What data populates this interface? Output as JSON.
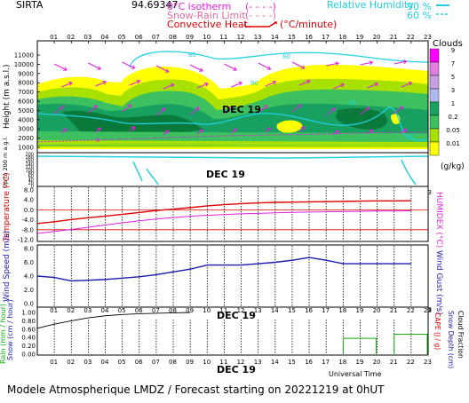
{
  "header": {
    "site": "SIRTA",
    "coords": "94.69347",
    "legend_isotherm": "0°C isotherm",
    "legend_snow_rain": "Snow-Rain Limit",
    "legend_convective": "Convective Heat.",
    "legend_convective_unit": "(°C/minute)",
    "legend_rh": "Relative Humidity",
    "rh_90": "90 %",
    "rh_60": "60 %"
  },
  "footer": {
    "model": "Modele Atmospherique LMDZ / Forecast starting on 20221219 at 0hUT",
    "universal_time": "Universal Time"
  },
  "colors": {
    "magenta": "#e020e0",
    "cyan": "#20d0e0",
    "red": "#dd0000",
    "navy": "#1a1ab0",
    "green": "#10b010",
    "black": "#000000"
  },
  "chart_data": [
    {
      "type": "heatmap",
      "title": "Clouds",
      "date_label": "DEC 19",
      "x_ticks": [
        "01",
        "02",
        "03",
        "04",
        "05",
        "06",
        "07",
        "08",
        "09",
        "10",
        "11",
        "12",
        "13",
        "14",
        "15",
        "16",
        "17",
        "18",
        "19",
        "20",
        "21",
        "22",
        "23"
      ],
      "y_ticks_upper": [
        "11000",
        "10000",
        "9000",
        "8000",
        "7000",
        "6000",
        "5000",
        "4000",
        "3000",
        "2000",
        "1000"
      ],
      "y_ticks_lower": [
        "200",
        "180",
        "160",
        "140",
        "120",
        "100",
        "80",
        "60",
        "40",
        "20",
        "0"
      ],
      "ylabel_upper": "Height (m a.s.l.)",
      "ylabel_lower": "Up to 200 m a.g.l.",
      "colorbar_title": "Clouds",
      "colorbar_unit": "(g/kg)",
      "colorbar_levels": [
        "9",
        "7",
        "5",
        "3",
        "1",
        "0.2",
        "0.05",
        "0.01"
      ],
      "colorbar_colors": [
        "#ff00ff",
        "#e07fe0",
        "#c89fe0",
        "#b0b8f0",
        "#18a060",
        "#3cc060",
        "#a8e000",
        "#ffff00"
      ],
      "rh_contour_labels": [
        "80",
        "80",
        "90",
        "90",
        "60"
      ]
    },
    {
      "type": "line",
      "date_label": "DEC 19",
      "x_ticks": [
        "01",
        "02",
        "03",
        "04",
        "05",
        "06",
        "07",
        "08",
        "09",
        "10",
        "11",
        "12",
        "13",
        "14",
        "15",
        "16",
        "17",
        "18",
        "19",
        "20",
        "21",
        "22",
        "23"
      ],
      "ylabel_left": "Temperature (°C)",
      "ylabel_right": "HUMIDEX (°C)",
      "y_ticks": [
        "8.0",
        "4.0",
        "0.0",
        "-4.0",
        "-8.0",
        "-12.0"
      ],
      "ylim": [
        -12,
        8
      ],
      "x": [
        1,
        2,
        3,
        4,
        5,
        6,
        7,
        8,
        9,
        10,
        11,
        12,
        13,
        14,
        15,
        16,
        17,
        18,
        19,
        20,
        21,
        22,
        23
      ],
      "series": [
        {
          "values": [
            -5.5,
            -4.8,
            -3.9,
            -3.2,
            -2.5,
            -1.8,
            -1.1,
            -0.3,
            0.3,
            0.9,
            1.6,
            2.1,
            2.5,
            2.8,
            3.0,
            3.1,
            3.2,
            3.3,
            3.4,
            3.5,
            3.6,
            3.6,
            3.7
          ]
        },
        {
          "values": [
            -9.5,
            -8.7,
            -7.9,
            -7.0,
            -6.1,
            -5.2,
            -4.4,
            -3.7,
            -3.1,
            -2.6,
            -2.2,
            -1.9,
            -1.6,
            -1.4,
            -1.2,
            -1.0,
            -0.9,
            -0.8,
            -0.7,
            -0.6,
            -0.5,
            -0.5,
            -0.4
          ]
        }
      ]
    },
    {
      "type": "line",
      "ylabel_left": "Wind Speed (m/s)",
      "ylabel_right": "Wind Gust (m/s)",
      "y_ticks": [
        "8.0",
        "6.0",
        "4.0",
        "2.0",
        "0.0"
      ],
      "ylim": [
        0,
        8
      ],
      "x": [
        1,
        2,
        3,
        4,
        5,
        6,
        7,
        8,
        9,
        10,
        11,
        12,
        13,
        14,
        15,
        16,
        17,
        18,
        19,
        20,
        21,
        22,
        23
      ],
      "series": [
        {
          "values": [
            4.0,
            3.8,
            3.3,
            3.4,
            3.5,
            3.7,
            3.9,
            4.2,
            4.6,
            5.0,
            5.6,
            5.6,
            5.6,
            5.8,
            6.0,
            6.3,
            6.7,
            6.3,
            5.8,
            5.8,
            5.8,
            5.8,
            5.8
          ]
        }
      ]
    },
    {
      "type": "bar",
      "date_label": "DEC 19",
      "x_ticks": [
        "01",
        "02",
        "03",
        "04",
        "05",
        "06",
        "07",
        "08",
        "09",
        "10",
        "11",
        "12",
        "13",
        "14",
        "15",
        "16",
        "17",
        "18",
        "19",
        "20",
        "21",
        "22",
        "23"
      ],
      "ylabel_left_rain": "Rain (mm / hour)",
      "ylabel_left_snow": "Snow (cm / hour)",
      "ylabel_right_cape": "CAPE (J / g)",
      "ylabel_right_snowdepth": "Snow Depth (cm)",
      "ylabel_right_cloud": "Cloud Fraction",
      "y_ticks": [
        "1.00",
        "0.80",
        "0.60",
        "0.40",
        "0.20",
        "0.00"
      ],
      "ylim": [
        0,
        1
      ],
      "cloud_fraction": {
        "x": [
          1,
          2,
          3,
          4,
          5,
          6,
          7,
          8,
          9,
          10
        ],
        "values": [
          0.62,
          0.72,
          0.8,
          0.87,
          0.92,
          0.95,
          0.97,
          0.98,
          0.99,
          1.0
        ]
      },
      "rain": {
        "x": [
          19,
          20,
          22,
          23
        ],
        "values": [
          0.38,
          0.38,
          0.48,
          0.48
        ]
      }
    }
  ]
}
